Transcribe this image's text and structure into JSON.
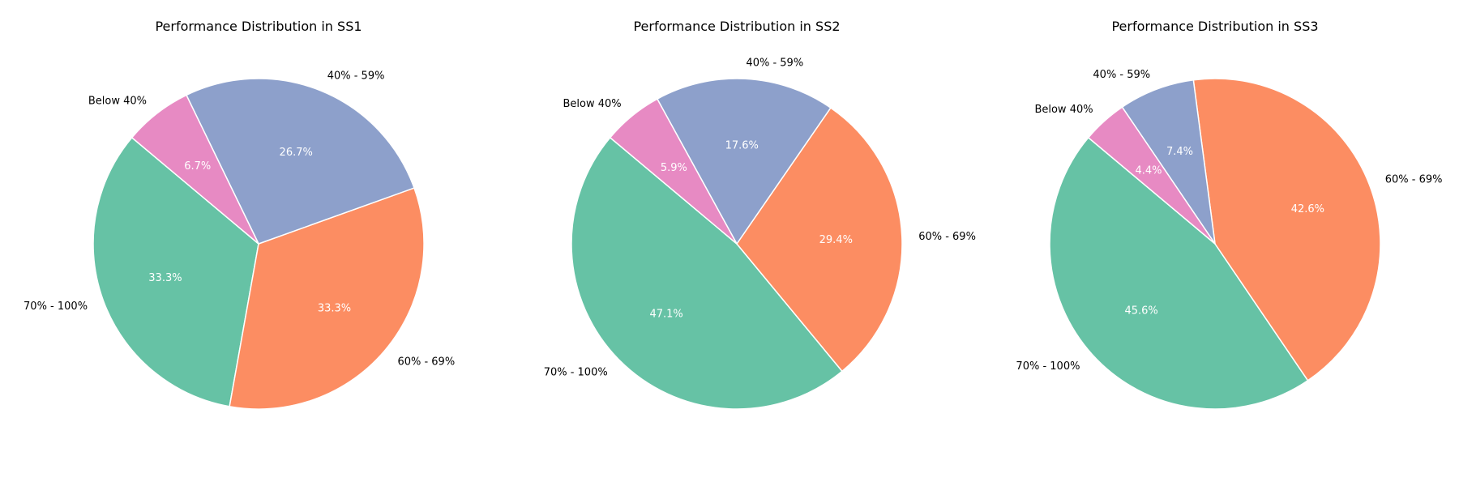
{
  "chart_data": [
    {
      "type": "pie",
      "title": "Performance Distribution in SS1",
      "categories": [
        "70% - 100%",
        "60% - 69%",
        "40% - 59%",
        "Below 40%"
      ],
      "values": [
        33.3,
        33.3,
        26.7,
        6.7
      ],
      "value_labels": [
        "33.3%",
        "33.3%",
        "26.7%",
        "6.7%"
      ],
      "colors": [
        "#66c2a5",
        "#fc8d62",
        "#8da0cb",
        "#e78ac3"
      ],
      "start_angle_deg": 140,
      "direction": "counterclockwise"
    },
    {
      "type": "pie",
      "title": "Performance Distribution in SS2",
      "categories": [
        "70% - 100%",
        "60% - 69%",
        "40% - 59%",
        "Below 40%"
      ],
      "values": [
        47.1,
        29.4,
        17.6,
        5.9
      ],
      "value_labels": [
        "47.1%",
        "29.4%",
        "17.6%",
        "5.9%"
      ],
      "colors": [
        "#66c2a5",
        "#fc8d62",
        "#8da0cb",
        "#e78ac3"
      ],
      "start_angle_deg": 140,
      "direction": "counterclockwise"
    },
    {
      "type": "pie",
      "title": "Performance Distribution in SS3",
      "categories": [
        "70% - 100%",
        "60% - 69%",
        "40% - 59%",
        "Below 40%"
      ],
      "values": [
        45.6,
        42.6,
        7.4,
        4.4
      ],
      "value_labels": [
        "45.6%",
        "42.6%",
        "7.4%",
        "4.4%"
      ],
      "colors": [
        "#66c2a5",
        "#fc8d62",
        "#8da0cb",
        "#e78ac3"
      ],
      "start_angle_deg": 140,
      "direction": "counterclockwise"
    }
  ]
}
